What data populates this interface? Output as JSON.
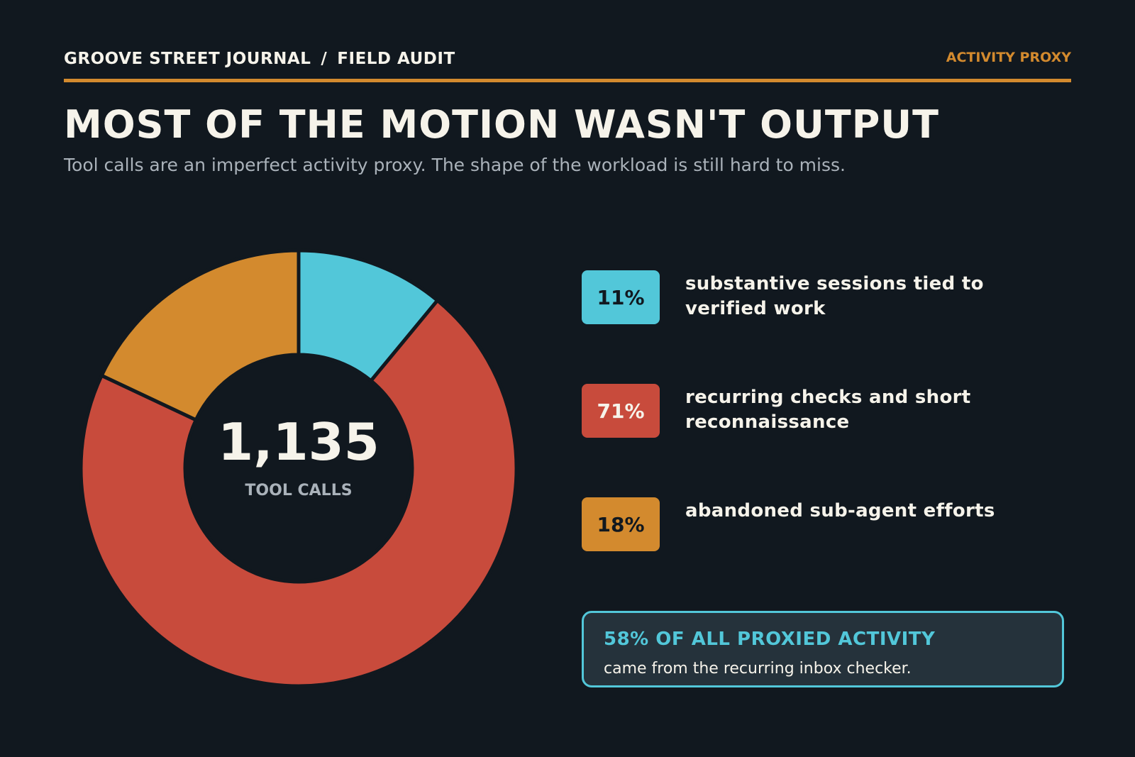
{
  "header": {
    "brand": "GROOVE STREET JOURNAL",
    "separator": "/",
    "section": "FIELD AUDIT",
    "tag": "ACTIVITY PROXY"
  },
  "headline": "MOST OF THE MOTION WASN'T OUTPUT",
  "subhead": "Tool calls are an imperfect activity proxy. The shape of the workload is still hard to miss.",
  "center": {
    "value": "1,135",
    "label": "TOOL CALLS"
  },
  "chart_data": {
    "type": "pie",
    "donut": true,
    "categories": [
      "substantive sessions tied to verified work",
      "recurring checks and short reconnaissance",
      "abandoned sub-agent efforts"
    ],
    "values": [
      11,
      71,
      18
    ],
    "value_labels": [
      "11%",
      "71%",
      "18%"
    ],
    "colors": [
      "#52c7d9",
      "#c84b3c",
      "#d38a2e"
    ],
    "center_total": 1135
  },
  "legend": [
    {
      "pct": "11%",
      "label": "substantive sessions tied to verified work",
      "color": "#52c7d9",
      "text_color": "#11181f"
    },
    {
      "pct": "71%",
      "label": "recurring checks and short reconnaissance",
      "color": "#c84b3c",
      "text_color": "#f6f3ea"
    },
    {
      "pct": "18%",
      "label": "abandoned sub-agent efforts",
      "color": "#d38a2e",
      "text_color": "#11181f"
    }
  ],
  "callout": {
    "title": "58% OF ALL PROXIED ACTIVITY",
    "body": "came from the recurring inbox checker."
  },
  "colors": {
    "background": "#11181f",
    "accent": "#d38a2e",
    "callout_border": "#52c7d9",
    "callout_bg": "#25323b"
  }
}
